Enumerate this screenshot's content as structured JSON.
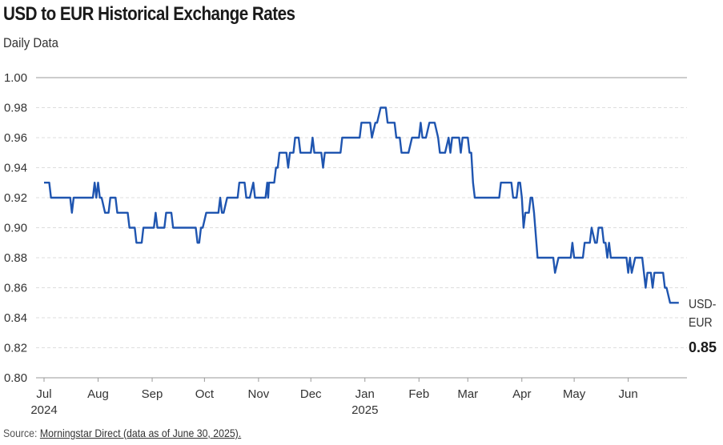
{
  "chart_data": {
    "type": "line",
    "title": "USD to EUR Historical Exchange Rates",
    "subtitle": "Daily Data",
    "xlabel": "",
    "ylabel": "",
    "x_unit": "days since 2024-07-01",
    "ylim": [
      0.8,
      1.0
    ],
    "yticks": [
      "0.80",
      "0.82",
      "0.84",
      "0.86",
      "0.88",
      "0.90",
      "0.92",
      "0.94",
      "0.96",
      "0.98",
      "1.00"
    ],
    "xticks": [
      {
        "day": 0,
        "label": "Jul",
        "sub": "2024"
      },
      {
        "day": 31,
        "label": "Aug"
      },
      {
        "day": 62,
        "label": "Sep"
      },
      {
        "day": 92,
        "label": "Oct"
      },
      {
        "day": 123,
        "label": "Nov"
      },
      {
        "day": 153,
        "label": "Dec"
      },
      {
        "day": 184,
        "label": "Jan",
        "sub": "2025"
      },
      {
        "day": 215,
        "label": "Feb"
      },
      {
        "day": 243,
        "label": "Mar"
      },
      {
        "day": 274,
        "label": "Apr"
      },
      {
        "day": 304,
        "label": "May"
      },
      {
        "day": 335,
        "label": "Jun"
      }
    ],
    "grid": true,
    "series": [
      {
        "name": "USD-EUR",
        "color": "#1f55b0",
        "points": [
          [
            0,
            0.93
          ],
          [
            3,
            0.93
          ],
          [
            4,
            0.92
          ],
          [
            15,
            0.92
          ],
          [
            16,
            0.91
          ],
          [
            17,
            0.92
          ],
          [
            28,
            0.92
          ],
          [
            29,
            0.93
          ],
          [
            30,
            0.92
          ],
          [
            31,
            0.93
          ],
          [
            32,
            0.92
          ],
          [
            33,
            0.92
          ],
          [
            35,
            0.91
          ],
          [
            37,
            0.91
          ],
          [
            38,
            0.92
          ],
          [
            41,
            0.92
          ],
          [
            42,
            0.91
          ],
          [
            48,
            0.91
          ],
          [
            49,
            0.9
          ],
          [
            52,
            0.9
          ],
          [
            53,
            0.89
          ],
          [
            56,
            0.89
          ],
          [
            57,
            0.9
          ],
          [
            63,
            0.9
          ],
          [
            64,
            0.91
          ],
          [
            65,
            0.9
          ],
          [
            69,
            0.9
          ],
          [
            70,
            0.91
          ],
          [
            73,
            0.91
          ],
          [
            74,
            0.9
          ],
          [
            87,
            0.9
          ],
          [
            88,
            0.89
          ],
          [
            89,
            0.89
          ],
          [
            90,
            0.9
          ],
          [
            91,
            0.9
          ],
          [
            93,
            0.91
          ],
          [
            100,
            0.91
          ],
          [
            101,
            0.92
          ],
          [
            102,
            0.91
          ],
          [
            103,
            0.91
          ],
          [
            105,
            0.92
          ],
          [
            111,
            0.92
          ],
          [
            112,
            0.93
          ],
          [
            115,
            0.93
          ],
          [
            116,
            0.92
          ],
          [
            118,
            0.92
          ],
          [
            120,
            0.93
          ],
          [
            121,
            0.92
          ],
          [
            127,
            0.92
          ],
          [
            128,
            0.93
          ],
          [
            128.5,
            0.92
          ],
          [
            129,
            0.93
          ],
          [
            132,
            0.93
          ],
          [
            133,
            0.94
          ],
          [
            134,
            0.94
          ],
          [
            135,
            0.95
          ],
          [
            139,
            0.95
          ],
          [
            140,
            0.94
          ],
          [
            141,
            0.95
          ],
          [
            143,
            0.95
          ],
          [
            144,
            0.96
          ],
          [
            146,
            0.96
          ],
          [
            147,
            0.95
          ],
          [
            153,
            0.95
          ],
          [
            154,
            0.96
          ],
          [
            155,
            0.95
          ],
          [
            159,
            0.95
          ],
          [
            160,
            0.94
          ],
          [
            161,
            0.95
          ],
          [
            170,
            0.95
          ],
          [
            171,
            0.96
          ],
          [
            181,
            0.96
          ],
          [
            182,
            0.97
          ],
          [
            187,
            0.97
          ],
          [
            188,
            0.96
          ],
          [
            190,
            0.97
          ],
          [
            191,
            0.97
          ],
          [
            193,
            0.98
          ],
          [
            196,
            0.98
          ],
          [
            197,
            0.97
          ],
          [
            201,
            0.97
          ],
          [
            202,
            0.96
          ],
          [
            204,
            0.96
          ],
          [
            205,
            0.95
          ],
          [
            209,
            0.95
          ],
          [
            211,
            0.96
          ],
          [
            215,
            0.96
          ],
          [
            216,
            0.97
          ],
          [
            217,
            0.96
          ],
          [
            219,
            0.96
          ],
          [
            221,
            0.97
          ],
          [
            224,
            0.97
          ],
          [
            226,
            0.96
          ],
          [
            227,
            0.95
          ],
          [
            230,
            0.95
          ],
          [
            232,
            0.96
          ],
          [
            233,
            0.95
          ],
          [
            234,
            0.96
          ],
          [
            238,
            0.96
          ],
          [
            239,
            0.95
          ],
          [
            240,
            0.96
          ],
          [
            243,
            0.96
          ],
          [
            244,
            0.95
          ],
          [
            245,
            0.95
          ],
          [
            246,
            0.93
          ],
          [
            247,
            0.92
          ],
          [
            261,
            0.92
          ],
          [
            262,
            0.93
          ],
          [
            268,
            0.93
          ],
          [
            269,
            0.92
          ],
          [
            271,
            0.92
          ],
          [
            272,
            0.93
          ],
          [
            273,
            0.93
          ],
          [
            274,
            0.92
          ],
          [
            275,
            0.9
          ],
          [
            276,
            0.91
          ],
          [
            278,
            0.91
          ],
          [
            279,
            0.92
          ],
          [
            280,
            0.92
          ],
          [
            281,
            0.91
          ],
          [
            283,
            0.88
          ],
          [
            292,
            0.88
          ],
          [
            293,
            0.87
          ],
          [
            295,
            0.88
          ],
          [
            302,
            0.88
          ],
          [
            303,
            0.89
          ],
          [
            304,
            0.88
          ],
          [
            309,
            0.88
          ],
          [
            310,
            0.89
          ],
          [
            313,
            0.89
          ],
          [
            314,
            0.9
          ],
          [
            316,
            0.89
          ],
          [
            317,
            0.89
          ],
          [
            318,
            0.9
          ],
          [
            320,
            0.9
          ],
          [
            321,
            0.89
          ],
          [
            322,
            0.89
          ],
          [
            323,
            0.88
          ],
          [
            324,
            0.89
          ],
          [
            325,
            0.88
          ],
          [
            334,
            0.88
          ],
          [
            335,
            0.87
          ],
          [
            336,
            0.88
          ],
          [
            337,
            0.87
          ],
          [
            339,
            0.88
          ],
          [
            343,
            0.88
          ],
          [
            345,
            0.86
          ],
          [
            346,
            0.87
          ],
          [
            348,
            0.87
          ],
          [
            349,
            0.86
          ],
          [
            350,
            0.87
          ],
          [
            355,
            0.87
          ],
          [
            356,
            0.86
          ],
          [
            357,
            0.86
          ],
          [
            359,
            0.85
          ],
          [
            364,
            0.85
          ]
        ]
      }
    ],
    "end_label": {
      "line1": "USD-",
      "line2": "EUR",
      "value": "0.85"
    }
  },
  "source": {
    "prefix": "Source: ",
    "link": "Morningstar Direct (data as of June 30, 2025)."
  }
}
